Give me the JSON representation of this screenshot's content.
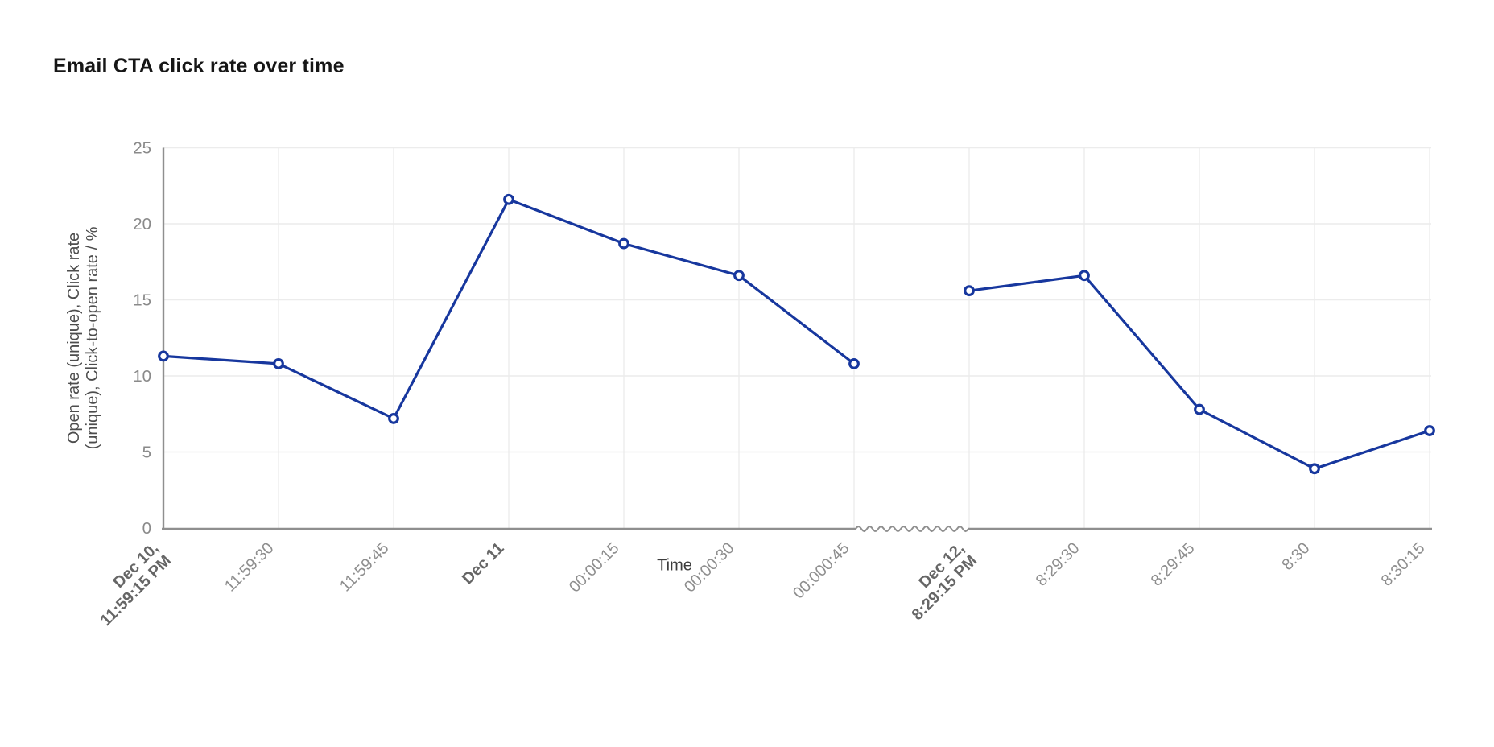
{
  "chart_data": {
    "type": "line",
    "title": "Email CTA click rate over time",
    "xlabel": "Time",
    "ylabel_lines": [
      "Open rate (unique), Click rate",
      "(unique), Click-to-open rate / %"
    ],
    "ylim": [
      0,
      25
    ],
    "yticks": [
      0,
      5,
      10,
      15,
      20,
      25
    ],
    "categories": [
      {
        "lines": [
          "Dec 10,",
          "11:59:15 PM"
        ],
        "bold": true
      },
      {
        "lines": [
          "11:59:30"
        ],
        "bold": false
      },
      {
        "lines": [
          "11:59:45"
        ],
        "bold": false
      },
      {
        "lines": [
          "Dec 11"
        ],
        "bold": true
      },
      {
        "lines": [
          "00:00:15"
        ],
        "bold": false
      },
      {
        "lines": [
          "00:00:30"
        ],
        "bold": false
      },
      {
        "lines": [
          "00:000:45"
        ],
        "bold": false
      },
      {
        "lines": [
          "Dec 12,",
          "8:29:15 PM"
        ],
        "bold": true
      },
      {
        "lines": [
          "8:29:30"
        ],
        "bold": false
      },
      {
        "lines": [
          "8:29:45"
        ],
        "bold": false
      },
      {
        "lines": [
          "8:30"
        ],
        "bold": false
      },
      {
        "lines": [
          "8:30:15"
        ],
        "bold": false
      }
    ],
    "values": [
      11.3,
      10.8,
      7.2,
      21.6,
      18.7,
      16.6,
      10.8,
      15.6,
      16.6,
      7.8,
      3.9,
      6.4
    ],
    "axis_break": {
      "after_category_index": 6,
      "style": "wavy",
      "line_gap": true
    },
    "grid": true,
    "legend": "none",
    "colors": {
      "line": "#17379e",
      "marker_fill": "#ffffff",
      "axis": "#8f8f8f",
      "grid": "#ececec",
      "y_tick_label": "#8a8a8a",
      "x_tick_label": "#8e8e8e",
      "x_tick_label_bold": "#666666",
      "title": "#161616",
      "axis_title": "#4d4d4d"
    }
  }
}
